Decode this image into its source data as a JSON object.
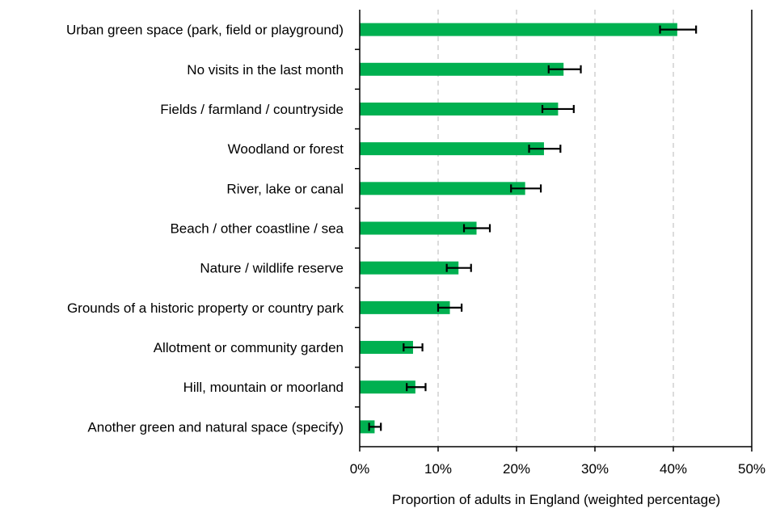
{
  "chart_data": {
    "type": "bar",
    "orientation": "horizontal",
    "title": "",
    "xlabel": "Proportion of adults in England (weighted percentage)",
    "ylabel": "",
    "xlim": [
      0,
      50
    ],
    "x_ticks": [
      "0%",
      "10%",
      "20%",
      "30%",
      "40%",
      "50%"
    ],
    "x_tick_values": [
      0,
      10,
      20,
      30,
      40,
      50
    ],
    "grid": "vertical dashed",
    "bar_color": "#00b050",
    "categories": [
      "Urban green space (park, field or playground)",
      "No visits in the last month",
      "Fields / farmland / countryside",
      "Woodland or forest",
      "River, lake or canal",
      "Beach / other coastline / sea",
      "Nature / wildlife reserve",
      "Grounds of a historic property or country park",
      "Allotment or community garden",
      "Hill, mountain or moorland",
      "Another green and natural space (specify)"
    ],
    "values": [
      40.5,
      26.0,
      25.3,
      23.5,
      21.1,
      14.9,
      12.6,
      11.5,
      6.8,
      7.1,
      1.9
    ],
    "error_low": [
      38.3,
      24.1,
      23.3,
      21.6,
      19.3,
      13.3,
      11.1,
      10.0,
      5.6,
      6.0,
      1.2
    ],
    "error_high": [
      42.9,
      28.2,
      27.3,
      25.6,
      23.1,
      16.6,
      14.2,
      13.0,
      8.0,
      8.4,
      2.7
    ]
  }
}
